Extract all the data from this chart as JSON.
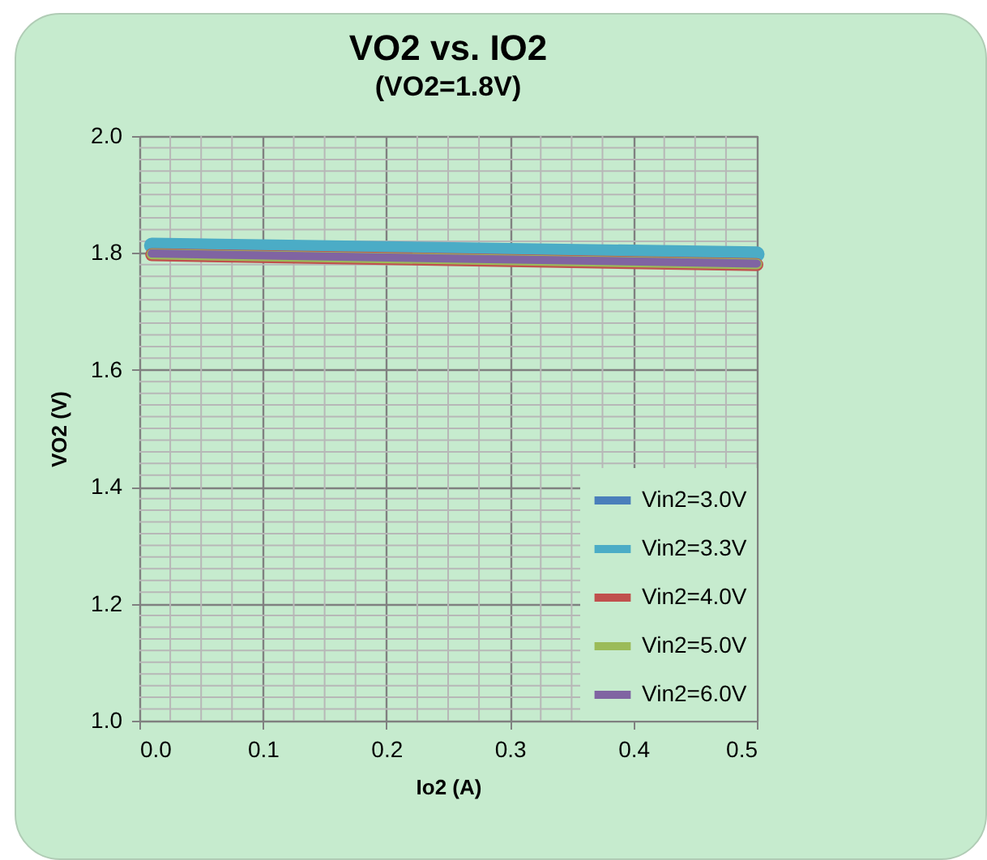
{
  "chart_data": {
    "type": "line",
    "title": "VO2 vs. IO2",
    "subtitle": "(VO2=1.8V)",
    "xlabel": "Io2 (A)",
    "ylabel": "VO2 (V)",
    "x": [
      0.01,
      0.5
    ],
    "series": [
      {
        "name": "Vin2=3.0V",
        "color": "#4a7ebb",
        "values": [
          null,
          null
        ]
      },
      {
        "name": "Vin2=3.3V",
        "color": "#4bacc6",
        "values": [
          1.813,
          1.798
        ]
      },
      {
        "name": "Vin2=4.0V",
        "color": "#c0504d",
        "values": [
          1.797,
          1.78
        ]
      },
      {
        "name": "Vin2=5.0V",
        "color": "#9bbb59",
        "values": [
          1.798,
          1.781
        ]
      },
      {
        "name": "Vin2=6.0V",
        "color": "#8064a2",
        "values": [
          1.799,
          1.782
        ]
      }
    ],
    "xlim": [
      0,
      0.5
    ],
    "xticks": [
      {
        "value": 0,
        "label": "0.0"
      },
      {
        "value": 0.1,
        "label": "0.1"
      },
      {
        "value": 0.2,
        "label": "0.2"
      },
      {
        "value": 0.3,
        "label": "0.3"
      },
      {
        "value": 0.4,
        "label": "0.4"
      },
      {
        "value": 0.5,
        "label": "0.5"
      }
    ],
    "ylim": [
      1,
      2
    ],
    "yticks": [
      {
        "value": 1,
        "label": "1.0"
      },
      {
        "value": 1.2,
        "label": "1.2"
      },
      {
        "value": 1.4,
        "label": "1.4"
      },
      {
        "value": 1.6,
        "label": "1.6"
      },
      {
        "value": 1.8,
        "label": "1.8"
      },
      {
        "value": 2,
        "label": "2.0"
      }
    ],
    "grid": true,
    "legend": "bottom right",
    "marker": "none",
    "line_style": "solid"
  }
}
